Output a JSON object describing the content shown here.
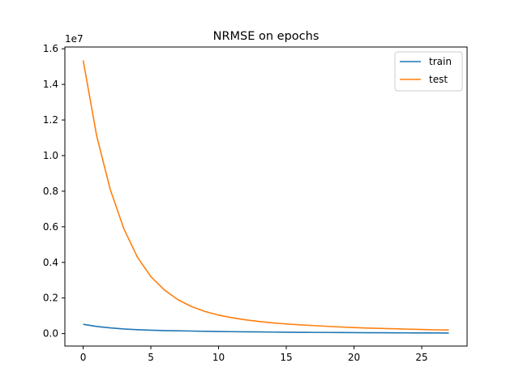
{
  "chart_data": {
    "type": "line",
    "title": "NRMSE on epochs",
    "xlabel": "",
    "ylabel": "",
    "y_multiplier_label": "1e7",
    "xlim": [
      -1.35,
      28.35
    ],
    "ylim": [
      -0.07,
      1.61
    ],
    "x_ticks": [
      0,
      5,
      10,
      15,
      20,
      25
    ],
    "y_ticks": [
      0.0,
      0.2,
      0.4,
      0.6,
      0.8,
      1.0,
      1.2,
      1.4,
      1.6
    ],
    "y_tick_labels": [
      "0.0",
      "0.2",
      "0.4",
      "0.6",
      "0.8",
      "1.0",
      "1.2",
      "1.4",
      "1.6"
    ],
    "legend_position": "top-right",
    "x": [
      0,
      1,
      2,
      3,
      4,
      5,
      6,
      7,
      8,
      9,
      10,
      11,
      12,
      13,
      14,
      15,
      16,
      17,
      18,
      19,
      20,
      21,
      22,
      23,
      24,
      25,
      26,
      27
    ],
    "series": [
      {
        "name": "train",
        "color": "#1f77b4",
        "values": [
          0.052,
          0.04,
          0.032,
          0.026,
          0.022,
          0.019,
          0.017,
          0.0155,
          0.0142,
          0.013,
          0.0118,
          0.0108,
          0.01,
          0.0092,
          0.0085,
          0.0079,
          0.0073,
          0.0068,
          0.0063,
          0.0058,
          0.0054,
          0.005,
          0.0046,
          0.0043,
          0.004,
          0.0037,
          0.0035,
          0.0033
        ]
      },
      {
        "name": "test",
        "color": "#ff7f0e",
        "values": [
          1.535,
          1.11,
          0.81,
          0.59,
          0.43,
          0.32,
          0.245,
          0.19,
          0.152,
          0.124,
          0.104,
          0.089,
          0.077,
          0.068,
          0.06,
          0.054,
          0.049,
          0.045,
          0.041,
          0.037,
          0.034,
          0.031,
          0.029,
          0.027,
          0.025,
          0.023,
          0.021,
          0.02
        ]
      }
    ]
  }
}
